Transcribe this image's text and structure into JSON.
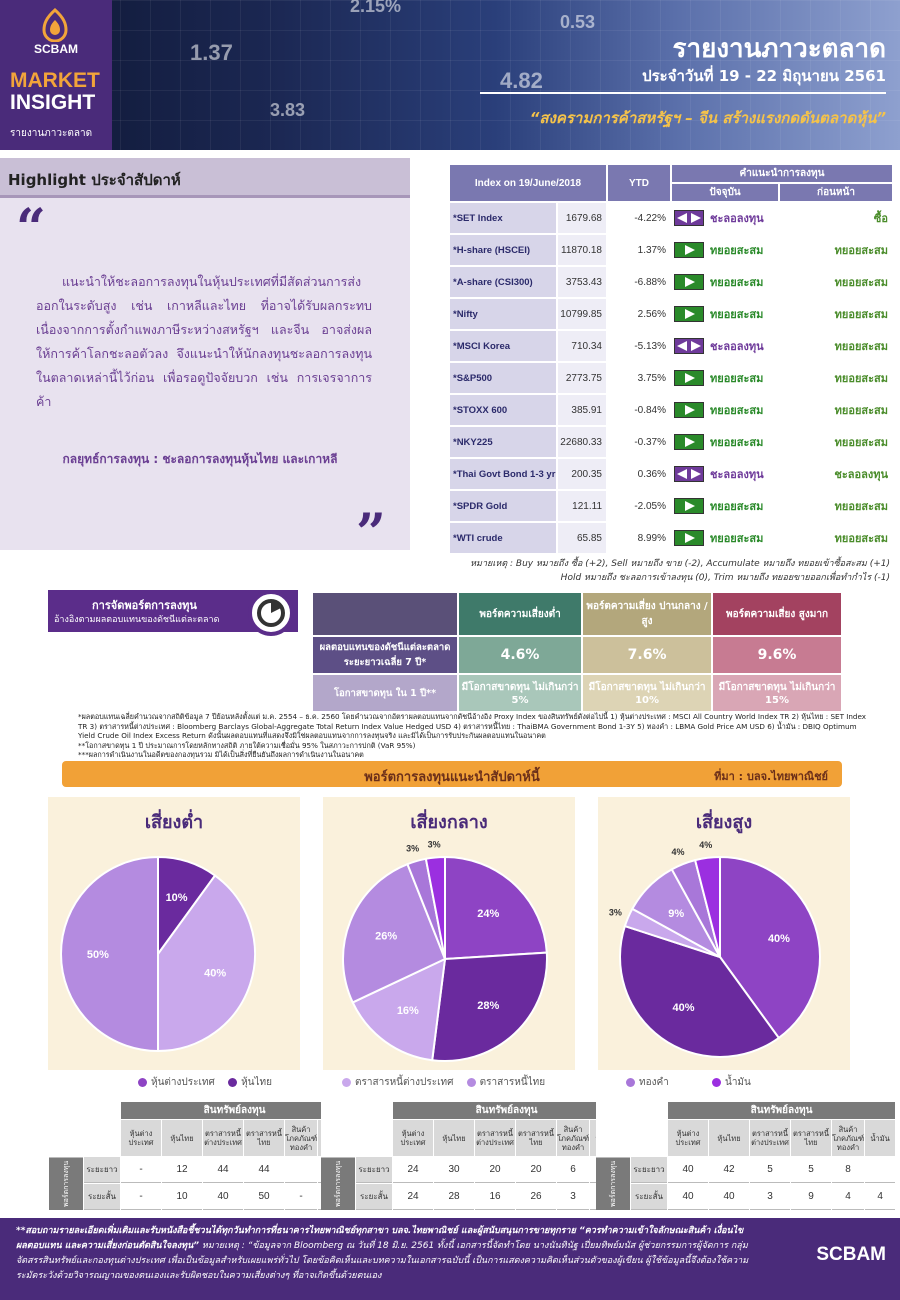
{
  "brand": {
    "name": "SCBAM",
    "line1": "MARKET",
    "line2": "INSIGHT",
    "subtitle": "รายงานภาวะตลาด"
  },
  "header": {
    "title": "รายงานภาวะตลาด",
    "date": "ประจำวันที่ 19 - 22 มิถุนายน 2561",
    "headline": "“สงครามการค้าสหรัฐฯ – จีน สร้างแรงกดดันตลาดหุ้น”",
    "bg_numbers": [
      "2.15%",
      "1.37",
      "4.82",
      "3.83",
      "0.53"
    ]
  },
  "highlight": {
    "title": "Highlight ประจำสัปดาห์",
    "quote_open": "“",
    "quote_close": "”",
    "body": "แนะนำให้ชะลอการลงทุนในหุ้นประเทศที่มีสัดส่วนการส่งออกในระดับสูง เช่น เกาหลีและไทย ที่อาจได้รับผลกระทบ เนื่องจากการตั้งกำแพงภาษีระหว่างสหรัฐฯ และจีน อาจส่งผลให้การค้าโลกชะลอตัวลง จึงแนะนำให้นักลงทุนชะลอการลงทุนในตลาดเหล่านี้ไว้ก่อน เพื่อรอดูปัจจัยบวก เช่น การเจรจาการค้า",
    "strategy": "กลยุทธ์การลงทุน : ชะลอการลงทุนหุ้นไทย และเกาหลี"
  },
  "index_table": {
    "headers": {
      "index": "Index on 19/June/2018",
      "ytd": "YTD",
      "recommend": "คำแนะนำการลงทุน",
      "current": "ปัจจุบัน",
      "previous": "ก่อนหน้า"
    },
    "rows": [
      {
        "name": "*SET Index",
        "value": "1679.68",
        "ytd": "-4.22%",
        "signal": "hold",
        "current": "ชะลอลงทุน",
        "previous": "ซื้อ"
      },
      {
        "name": "*H-share (HSCEI)",
        "value": "11870.18",
        "ytd": "1.37%",
        "signal": "acc",
        "current": "ทยอยสะสม",
        "previous": "ทยอยสะสม"
      },
      {
        "name": "*A-share (CSI300)",
        "value": "3753.43",
        "ytd": "-6.88%",
        "signal": "acc",
        "current": "ทยอยสะสม",
        "previous": "ทยอยสะสม"
      },
      {
        "name": "*Nifty",
        "value": "10799.85",
        "ytd": "2.56%",
        "signal": "acc",
        "current": "ทยอยสะสม",
        "previous": "ทยอยสะสม"
      },
      {
        "name": "*MSCI Korea",
        "value": "710.34",
        "ytd": "-5.13%",
        "signal": "hold",
        "current": "ชะลอลงทุน",
        "previous": "ทยอยสะสม"
      },
      {
        "name": "*S&P500",
        "value": "2773.75",
        "ytd": "3.75%",
        "signal": "acc",
        "current": "ทยอยสะสม",
        "previous": "ทยอยสะสม"
      },
      {
        "name": "*STOXX 600",
        "value": "385.91",
        "ytd": "-0.84%",
        "signal": "acc",
        "current": "ทยอยสะสม",
        "previous": "ทยอยสะสม"
      },
      {
        "name": "*NKY225",
        "value": "22680.33",
        "ytd": "-0.37%",
        "signal": "acc",
        "current": "ทยอยสะสม",
        "previous": "ทยอยสะสม"
      },
      {
        "name": "*Thai Govt Bond 1-3 yr",
        "value": "200.35",
        "ytd": "0.36%",
        "signal": "hold",
        "current": "ชะลอลงทุน",
        "previous": "ชะลอลงทุน"
      },
      {
        "name": "*SPDR Gold",
        "value": "121.11",
        "ytd": "-2.05%",
        "signal": "acc",
        "current": "ทยอยสะสม",
        "previous": "ทยอยสะสม"
      },
      {
        "name": "*WTI crude",
        "value": "65.85",
        "ytd": "8.99%",
        "signal": "acc",
        "current": "ทยอยสะสม",
        "previous": "ทยอยสะสม"
      }
    ],
    "note1": "หมายเหตุ : Buy หมายถึง ซื้อ (+2), Sell หมายถึง ขาย (-2), Accumulate หมายถึง ทยอยเข้าซื้อสะสม (+1)",
    "note2": "Hold หมายถึง ชะลอการเข้าลงทุน (0), Trim หมายถึง ทยอยขายออกเพื่อทำกำไร (-1)",
    "colors": {
      "accumulate": "#2a8a2a",
      "hold": "#6e3a9a"
    }
  },
  "portfolio": {
    "banner_title": "การจัดพอร์ตการลงทุน",
    "banner_sub": "อ้างอิงตามผลตอบแทนของดัชนีแต่ละตลาด",
    "col_low": "พอร์ตความเสี่ยงต่ำ",
    "col_mid": "พอร์ตความเสี่ยง ปานกลาง / สูง",
    "col_high": "พอร์ตความเสี่ยง สูงมาก",
    "row1_label": "ผลตอบแทนของดัชนีแต่ละตลาด ระยะยาวเฉลี่ย 7 ปี*",
    "row1": [
      "4.6%",
      "7.6%",
      "9.6%"
    ],
    "row2_label": "โอกาสขาดทุน ใน 1 ปี**",
    "row2": [
      "มีโอกาสขาดทุน ไม่เกินกว่า 5%",
      "มีโอกาสขาดทุน ไม่เกินกว่า 10%",
      "มีโอกาสขาดทุน ไม่เกินกว่า 15%"
    ],
    "notes": [
      "*ผลตอบแทนเฉลี่ยคำนวณจากสถิติข้อมูล 7 ปีย้อนหลังตั้งแต่ ม.ค. 2554 – ธ.ค. 2560 โดยคำนวณจากอัตราผลตอบแทนจากดัชนีอ้างอิง Proxy Index ของสินทรัพย์ดังต่อไปนี้ 1) หุ้นต่างประเทศ : MSCI All Country World Index TR 2) หุ้นไทย : SET Index TR 3) ตราสารหนี้ต่างประเทศ : Bloomberg Barclays Global-Aggregate Total Return Index Value Hedged USD 4) ตราสารหนี้ไทย : ThaiBMA Government Bond 1-3Y 5) ทองคำ : LBMA Gold Price AM USD 6) น้ำมัน : DBIQ Optimum Yield Crude Oil Index Excess Return ดังนั้นผลตอบแทนที่แสดงจึงมิใช่ผลตอบแทนจากการลงทุนจริง และมิได้เป็นการรับประกันผลตอบแทนในอนาคต",
      "**โอกาสขาดทุน 1 ปี ประมาณการโดยหลักทางสถิติ ภายใต้ความเชื่อมั่น 95% ในสภาวะการปกติ (VaR 95%)",
      "***ผลการดำเนินงานในอดีตของกองทุนรวม มิได้เป็นสิ่งที่ยืนยันถึงผลการดำเนินงานในอนาคต"
    ]
  },
  "weekly": {
    "title": "พอร์ตการลงทุนแนะนำสัปดาห์นี้",
    "source": "ที่มา : บลจ.ไทยพาณิชย์"
  },
  "legend": [
    {
      "label": "หุ้นต่างประเทศ",
      "color": "#8e44c4"
    },
    {
      "label": "หุ้นไทย",
      "color": "#6a2a9e"
    },
    {
      "label": "ตราสารหนี้ต่างประเทศ",
      "color": "#c9a8ec"
    },
    {
      "label": "ตราสารหนี้ไทย",
      "color": "#b48be0"
    },
    {
      "label": "ทองคำ",
      "color": "#a877d9"
    },
    {
      "label": "น้ำมัน",
      "color": "#9b2fe0"
    }
  ],
  "chart_data": [
    {
      "type": "pie",
      "title": "เสี่ยงต่ำ",
      "labels": [
        "หุ้นไทย",
        "ตราสารหนี้ต่างประเทศ",
        "ตราสารหนี้ไทย"
      ],
      "values": [
        10,
        40,
        50
      ],
      "value_labels": [
        "10%",
        "40%",
        "50%"
      ],
      "colors": [
        "#6a2a9e",
        "#c9a8ec",
        "#b48be0"
      ]
    },
    {
      "type": "pie",
      "title": "เสี่ยงกลาง",
      "labels": [
        "หุ้นต่างประเทศ",
        "หุ้นไทย",
        "ตราสารหนี้ต่างประเทศ",
        "ตราสารหนี้ไทย",
        "ทองคำ",
        "น้ำมัน"
      ],
      "values": [
        24,
        28,
        16,
        26,
        3,
        3
      ],
      "value_labels": [
        "24%",
        "28%",
        "16%",
        "26%",
        "3%",
        "3%"
      ],
      "colors": [
        "#8e44c4",
        "#6a2a9e",
        "#c9a8ec",
        "#b48be0",
        "#a877d9",
        "#9b2fe0"
      ]
    },
    {
      "type": "pie",
      "title": "เสี่ยงสูง",
      "labels": [
        "หุ้นต่างประเทศ",
        "หุ้นไทย",
        "ตราสารหนี้ต่างประเทศ",
        "ตราสารหนี้ไทย",
        "ทองคำ",
        "น้ำมัน"
      ],
      "values": [
        40,
        40,
        3,
        9,
        4,
        4
      ],
      "value_labels": [
        "40%",
        "40%",
        "3%",
        "9%",
        "4%",
        "4%"
      ],
      "colors": [
        "#8e44c4",
        "#6a2a9e",
        "#c9a8ec",
        "#b48be0",
        "#a877d9",
        "#9b2fe0"
      ]
    }
  ],
  "alloc_tables": {
    "head": "สินทรัพย์ลงทุน",
    "side": "พอร์ตการลงทุน",
    "cols": [
      "หุ้นต่าง ประเทศ",
      "หุ้นไทย",
      "ตราสารหนี้ ต่างประเทศ",
      "ตราสารหนี้ ไทย",
      "สินค้า โภคภัณฑ์ ทองคำ",
      "น้ำมัน"
    ],
    "row_labels": [
      "ระยะยาว",
      "ระยะสั้น"
    ],
    "tables": [
      {
        "rows": [
          [
            "-",
            "12",
            "44",
            "44",
            "",
            ""
          ],
          [
            "-",
            "10",
            "40",
            "50",
            "-",
            "-"
          ]
        ]
      },
      {
        "rows": [
          [
            "24",
            "30",
            "20",
            "20",
            "6",
            ""
          ],
          [
            "24",
            "28",
            "16",
            "26",
            "3",
            "3"
          ]
        ]
      },
      {
        "rows": [
          [
            "40",
            "42",
            "5",
            "5",
            "8",
            ""
          ],
          [
            "40",
            "40",
            "3",
            "9",
            "4",
            "4"
          ]
        ]
      }
    ]
  },
  "footer": {
    "text_bold1": "**สอบถามรายละเอียดเพิ่มเติมและรับหนังสือชี้ชวนได้ทุกวันทำการที่ธนาคารไทยพาณิชย์ทุกสาขา บลจ.ไทยพาณิชย์ และผู้สนับสนุนการขายทุกราย “ควรทำความเข้าใจลักษณะสินค้า เงื่อนไข ผลตอบแทน และความเสี่ยงก่อนตัดสินใจลงทุน”",
    "text": " หมายเหตุ : “ข้อมูลจาก Bloomberg ณ วันที่ 18 มิ.ย. 2561 ทั้งนี้ เอกสารนี้จัดทำโดย นางนันทินัฐ เปี่ยมทิพย์มนัส ผู้ช่วยกรรมการผู้จัดการ กลุ่มจัดสรรสินทรัพย์และกองทุนต่างประเทศ เพื่อเป็นข้อมูลสำหรับเผยแพร่ทั่วไป โดยข้อคิดเห็นและบทความในเอกสารฉบับนี้ เป็นการแสดงความคิดเห็นส่วนตัวของผู้เขียน ผู้ใช้ข้อมูลนี้จึงต้องใช้ความระมัดระวังด้วยวิจารณญาณของตนเองและรับผิดชอบในความเสี่ยงต่างๆ ที่อาจเกิดขึ้นด้วยตนเอง",
    "logo": "SCBAM"
  }
}
